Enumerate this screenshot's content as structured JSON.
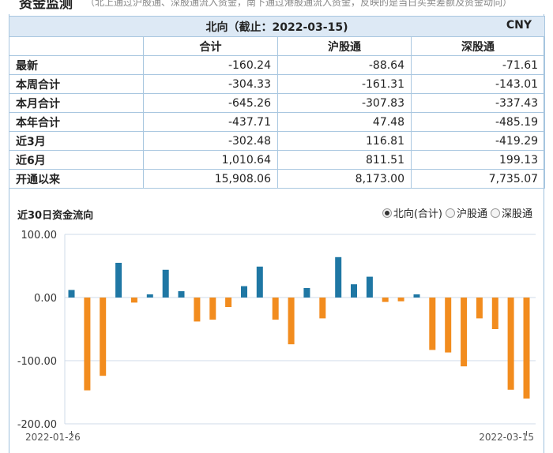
{
  "header": {
    "section_title": "资金监测",
    "note": "（北上通过沪股通、深股通流入资金，南下通过港股通流入资金，反映的是当日买卖差额及资金动向）"
  },
  "table": {
    "title": "北向（截止：2022-03-15)",
    "currency": "CNY",
    "columns": [
      "合计",
      "沪股通",
      "深股通"
    ],
    "rows": [
      {
        "label": "最新",
        "values": [
          "-160.24",
          "-88.64",
          "-71.61"
        ]
      },
      {
        "label": "本周合计",
        "values": [
          "-304.33",
          "-161.31",
          "-143.01"
        ]
      },
      {
        "label": "本月合计",
        "values": [
          "-645.26",
          "-307.83",
          "-337.43"
        ]
      },
      {
        "label": "本年合计",
        "values": [
          "-437.71",
          "47.48",
          "-485.19"
        ]
      },
      {
        "label": "近3月",
        "values": [
          "-302.48",
          "116.81",
          "-419.29"
        ]
      },
      {
        "label": "近6月",
        "values": [
          "1,010.64",
          "811.51",
          "199.13"
        ]
      },
      {
        "label": "开通以来",
        "values": [
          "15,908.06",
          "8,173.00",
          "7,735.07"
        ]
      }
    ]
  },
  "chart_header": {
    "title": "近30日资金流向",
    "options": [
      {
        "label": "北向(合计)",
        "selected": true
      },
      {
        "label": "沪股通",
        "selected": false
      },
      {
        "label": "深股通",
        "selected": false
      }
    ]
  },
  "chart_data": {
    "type": "bar",
    "title": "近30日资金流向",
    "xlabel": "",
    "ylabel": "",
    "x_start": "2022-01-26",
    "x_end": "2022-03-15",
    "yticks": [
      "100.00",
      "0.00",
      "-100.00",
      "-200.00"
    ],
    "ylim": [
      -200,
      100
    ],
    "grid": true,
    "values": [
      12,
      -147,
      -124,
      55,
      -8,
      5,
      44,
      10,
      -38,
      -35,
      -15,
      18,
      49,
      -35,
      -74,
      15,
      -33,
      64,
      21,
      33,
      -7,
      -6,
      5,
      -83,
      -87,
      -109,
      -33,
      -50,
      -146,
      -160
    ],
    "colors": {
      "positive": "#1f77a4",
      "negative": "#f28c1e",
      "grid": "#cfdbe8",
      "axis": "#666666"
    }
  }
}
